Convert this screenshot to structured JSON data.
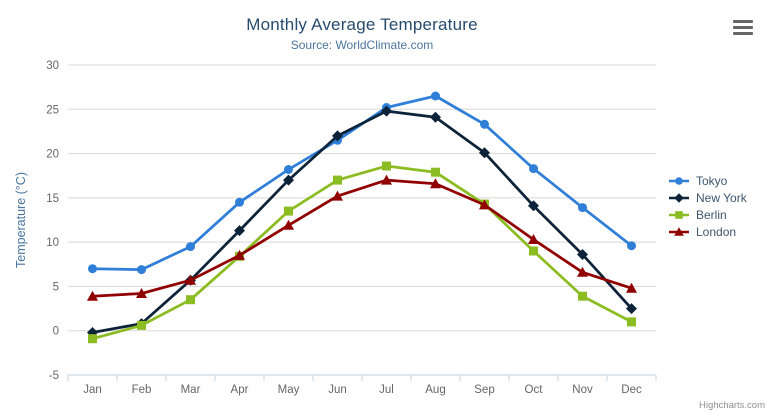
{
  "chart": {
    "title": "Monthly Average Temperature",
    "subtitle": "Source: WorldClimate.com",
    "credits": "Highcharts.com"
  },
  "chart_data": {
    "type": "line",
    "title": "Monthly Average Temperature",
    "subtitle": "Source: WorldClimate.com",
    "categories": [
      "Jan",
      "Feb",
      "Mar",
      "Apr",
      "May",
      "Jun",
      "Jul",
      "Aug",
      "Sep",
      "Oct",
      "Nov",
      "Dec"
    ],
    "series": [
      {
        "name": "Tokyo",
        "color": "#2f7ed8",
        "marker": "circle",
        "values": [
          7.0,
          6.9,
          9.5,
          14.5,
          18.2,
          21.5,
          25.2,
          26.5,
          23.3,
          18.3,
          13.9,
          9.6
        ]
      },
      {
        "name": "New York",
        "color": "#0d233a",
        "marker": "diamond",
        "values": [
          -0.2,
          0.8,
          5.7,
          11.3,
          17.0,
          22.0,
          24.8,
          24.1,
          20.1,
          14.1,
          8.6,
          2.5
        ]
      },
      {
        "name": "Berlin",
        "color": "#8bbc21",
        "marker": "square",
        "values": [
          -0.9,
          0.6,
          3.5,
          8.4,
          13.5,
          17.0,
          18.6,
          17.9,
          14.3,
          9.0,
          3.9,
          1.0
        ]
      },
      {
        "name": "London",
        "color": "#910000",
        "marker": "triangle",
        "values": [
          3.9,
          4.2,
          5.7,
          8.5,
          11.9,
          15.2,
          17.0,
          16.6,
          14.2,
          10.3,
          6.6,
          4.8
        ]
      }
    ],
    "xlabel": "",
    "ylabel": "Temperature (°C)",
    "ylim": [
      -5,
      30
    ],
    "ytick_step": 5,
    "yticks": [
      -5,
      0,
      5,
      10,
      15,
      20,
      25,
      30
    ],
    "grid": true,
    "legend_position": "right"
  },
  "styles": {
    "title_color": "#274b6d",
    "subtitle_color": "#4d759e",
    "axis_label_color": "#666666",
    "axis_title_color": "#4a759e",
    "legend_text_color": "#3e576f",
    "grid_color": "#d8d8d8",
    "axis_line_color": "#c0d0e0",
    "credits_color": "#909090",
    "menu_icon_color": "#666666"
  }
}
